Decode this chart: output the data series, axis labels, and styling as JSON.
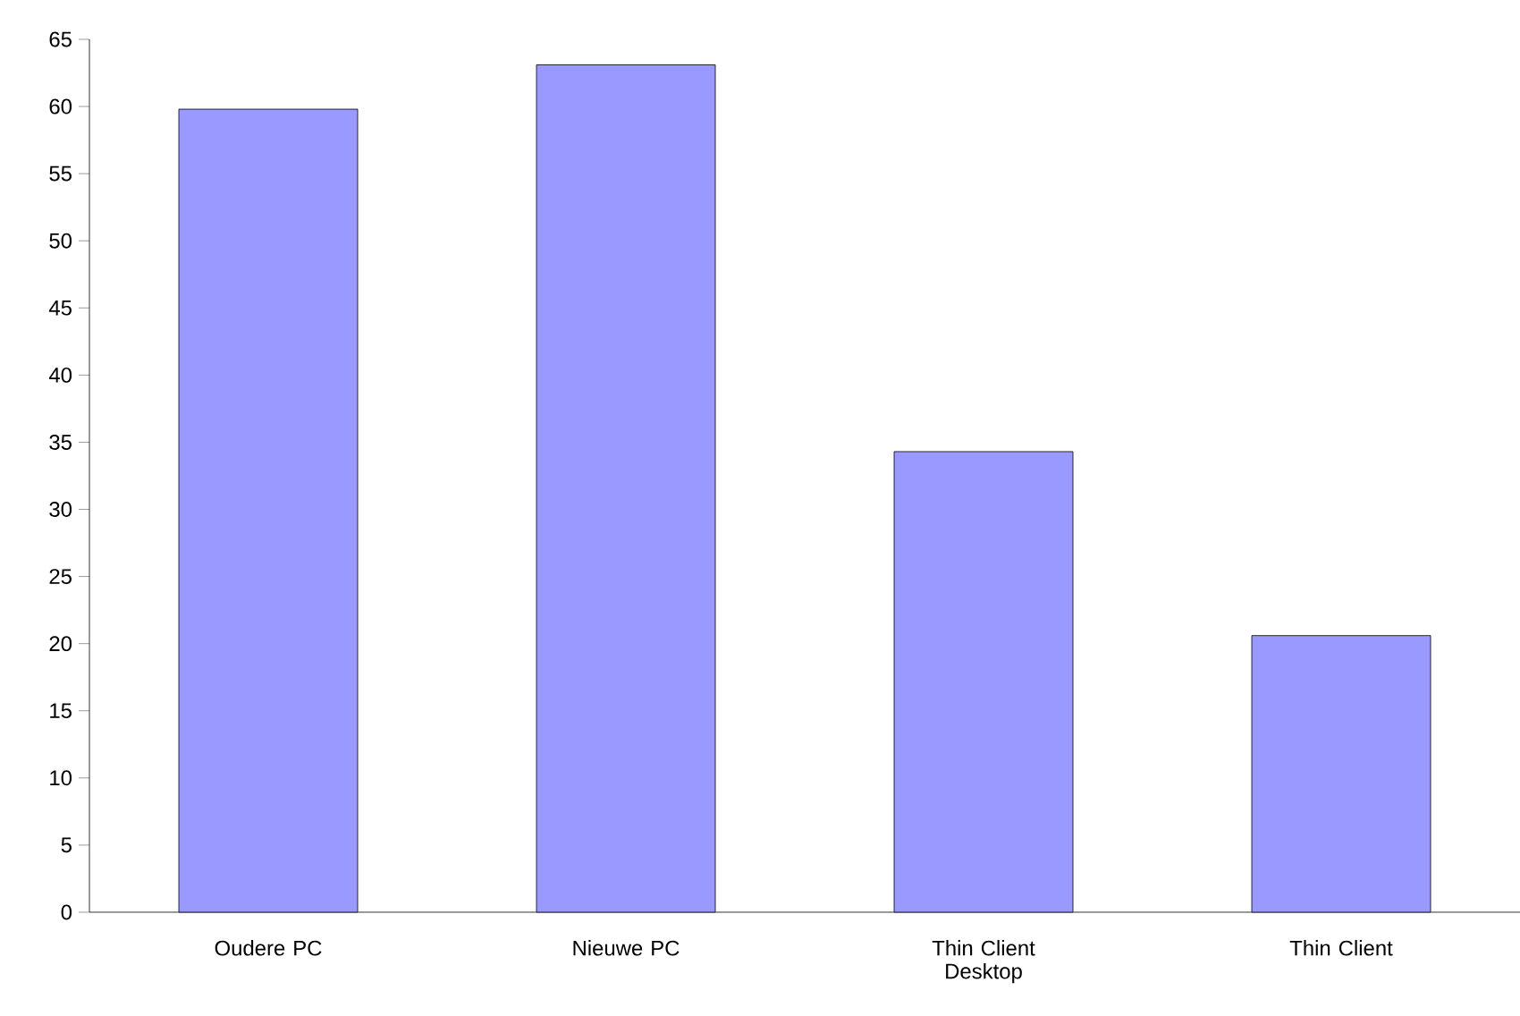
{
  "chart_data": {
    "type": "bar",
    "categories": [
      "Oudere PC",
      "Nieuwe PC",
      "Thin Client Desktop",
      "Thin Client"
    ],
    "values": [
      59.8,
      63.1,
      34.3,
      20.6
    ],
    "color": "#9999ff",
    "ylim": [
      0,
      65
    ],
    "yticks": [
      0,
      5,
      10,
      15,
      20,
      25,
      30,
      35,
      40,
      45,
      50,
      55,
      60,
      65
    ],
    "grid": false
  }
}
